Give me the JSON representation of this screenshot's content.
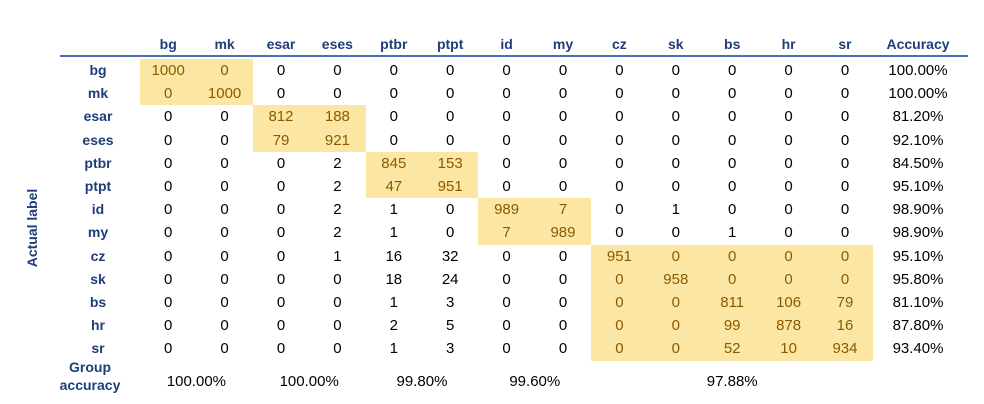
{
  "chart_data": {
    "type": "table",
    "title": "",
    "xlabel": "",
    "ylabel": "Actual label",
    "accuracy_header": "Accuracy",
    "group_accuracy_label": "Group\naccuracy",
    "columns": [
      "bg",
      "mk",
      "esar",
      "eses",
      "ptbr",
      "ptpt",
      "id",
      "my",
      "cz",
      "sk",
      "bs",
      "hr",
      "sr"
    ],
    "rows": [
      {
        "label": "bg",
        "values": [
          1000,
          0,
          0,
          0,
          0,
          0,
          0,
          0,
          0,
          0,
          0,
          0,
          0
        ],
        "accuracy": "100.00%"
      },
      {
        "label": "mk",
        "values": [
          0,
          1000,
          0,
          0,
          0,
          0,
          0,
          0,
          0,
          0,
          0,
          0,
          0
        ],
        "accuracy": "100.00%"
      },
      {
        "label": "esar",
        "values": [
          0,
          0,
          812,
          188,
          0,
          0,
          0,
          0,
          0,
          0,
          0,
          0,
          0
        ],
        "accuracy": "81.20%"
      },
      {
        "label": "eses",
        "values": [
          0,
          0,
          79,
          921,
          0,
          0,
          0,
          0,
          0,
          0,
          0,
          0,
          0
        ],
        "accuracy": "92.10%"
      },
      {
        "label": "ptbr",
        "values": [
          0,
          0,
          0,
          2,
          845,
          153,
          0,
          0,
          0,
          0,
          0,
          0,
          0
        ],
        "accuracy": "84.50%"
      },
      {
        "label": "ptpt",
        "values": [
          0,
          0,
          0,
          2,
          47,
          951,
          0,
          0,
          0,
          0,
          0,
          0,
          0
        ],
        "accuracy": "95.10%"
      },
      {
        "label": "id",
        "values": [
          0,
          0,
          0,
          2,
          1,
          0,
          989,
          7,
          0,
          1,
          0,
          0,
          0
        ],
        "accuracy": "98.90%"
      },
      {
        "label": "my",
        "values": [
          0,
          0,
          0,
          2,
          1,
          0,
          7,
          989,
          0,
          0,
          1,
          0,
          0
        ],
        "accuracy": "98.90%"
      },
      {
        "label": "cz",
        "values": [
          0,
          0,
          0,
          1,
          16,
          32,
          0,
          0,
          951,
          0,
          0,
          0,
          0
        ],
        "accuracy": "95.10%"
      },
      {
        "label": "sk",
        "values": [
          0,
          0,
          0,
          0,
          18,
          24,
          0,
          0,
          0,
          958,
          0,
          0,
          0
        ],
        "accuracy": "95.80%"
      },
      {
        "label": "bs",
        "values": [
          0,
          0,
          0,
          0,
          1,
          3,
          0,
          0,
          0,
          0,
          811,
          106,
          79
        ],
        "accuracy": "81.10%"
      },
      {
        "label": "hr",
        "values": [
          0,
          0,
          0,
          0,
          2,
          5,
          0,
          0,
          0,
          0,
          99,
          878,
          16
        ],
        "accuracy": "87.80%"
      },
      {
        "label": "sr",
        "values": [
          0,
          0,
          0,
          0,
          1,
          3,
          0,
          0,
          0,
          0,
          52,
          10,
          934
        ],
        "accuracy": "93.40%"
      }
    ],
    "groups": [
      {
        "members": [
          "bg",
          "mk"
        ],
        "accuracy": "100.00%"
      },
      {
        "members": [
          "esar",
          "eses"
        ],
        "accuracy": "100.00%"
      },
      {
        "members": [
          "ptbr",
          "ptpt"
        ],
        "accuracy": "99.80%"
      },
      {
        "members": [
          "id",
          "my"
        ],
        "accuracy": "99.60%"
      },
      {
        "members": [
          "cz",
          "sk",
          "bs",
          "hr",
          "sr"
        ],
        "accuracy": "97.88%"
      }
    ],
    "highlight_color": "#fbe7a3",
    "highlight_text_color": "#8a5a00",
    "header_color": "#1f3d7a"
  }
}
